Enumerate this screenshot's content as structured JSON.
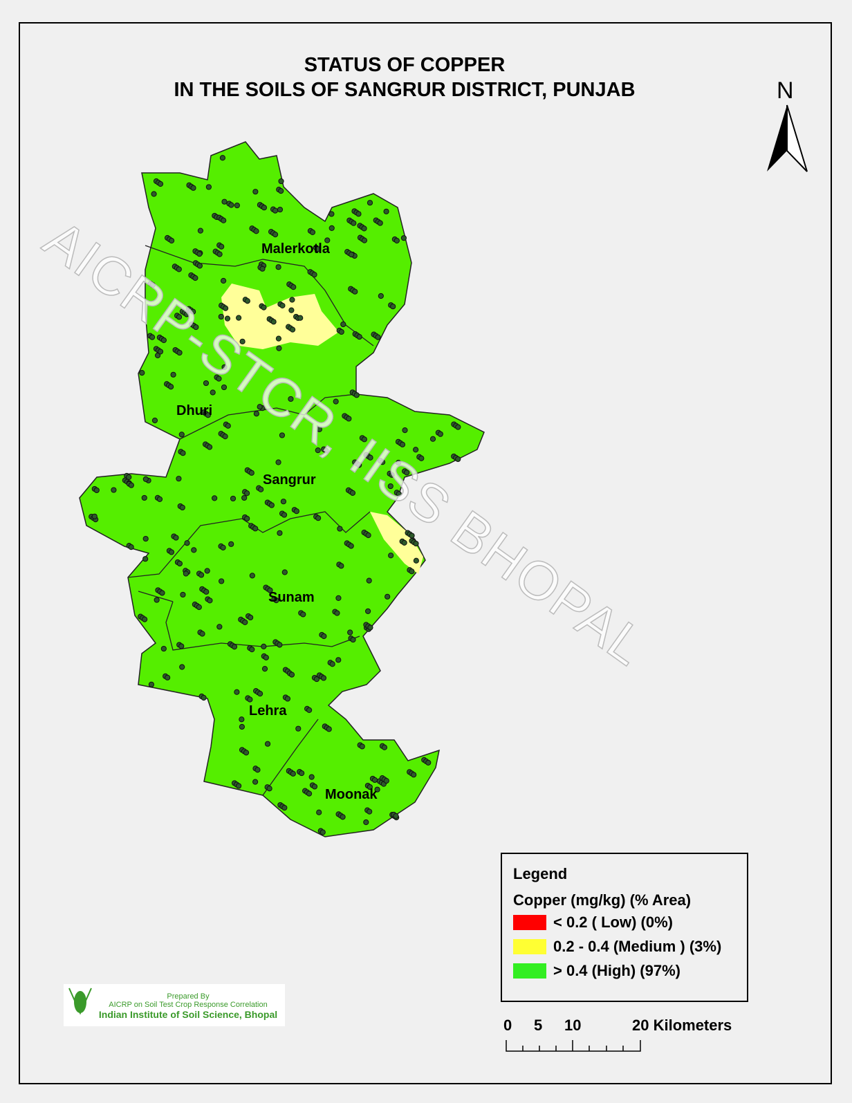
{
  "title": {
    "line1": "STATUS OF COPPER",
    "line2": "IN THE SOILS OF SANGRUR DISTRICT, PUNJAB"
  },
  "north_label": "N",
  "watermark": "AICRP-STCR, IISS  BHOPAL",
  "blocks": [
    "Malerkotla",
    "Dhuri",
    "Sangrur",
    "Sunam",
    "Lehra",
    "Moonak"
  ],
  "legend": {
    "heading": "Legend",
    "subheading": "Copper  (mg/kg) (% Area)",
    "classes": [
      {
        "label": "< 0.2 ( Low) (0%)",
        "color": "#ff0000",
        "percent": 0
      },
      {
        "label": "0.2 - 0.4 (Medium ) (3%)",
        "color": "#ffff66",
        "percent": 3
      },
      {
        "label": "> 0.4 (High) (97%)",
        "color": "#44ee00",
        "percent": 97
      }
    ]
  },
  "scale": {
    "ticks": [
      "0",
      "5",
      "10",
      "20 Kilometers"
    ]
  },
  "logo": {
    "line1": "Prepared By",
    "line2": "AICRP on Soil Test Crop Response Correlation",
    "line3": "Indian Institute of Soil Science, Bhopal",
    "emblem": "ICAR"
  },
  "colors": {
    "high": "#55ee00",
    "medium": "#ffff99",
    "sample": "#2d5a2a"
  }
}
